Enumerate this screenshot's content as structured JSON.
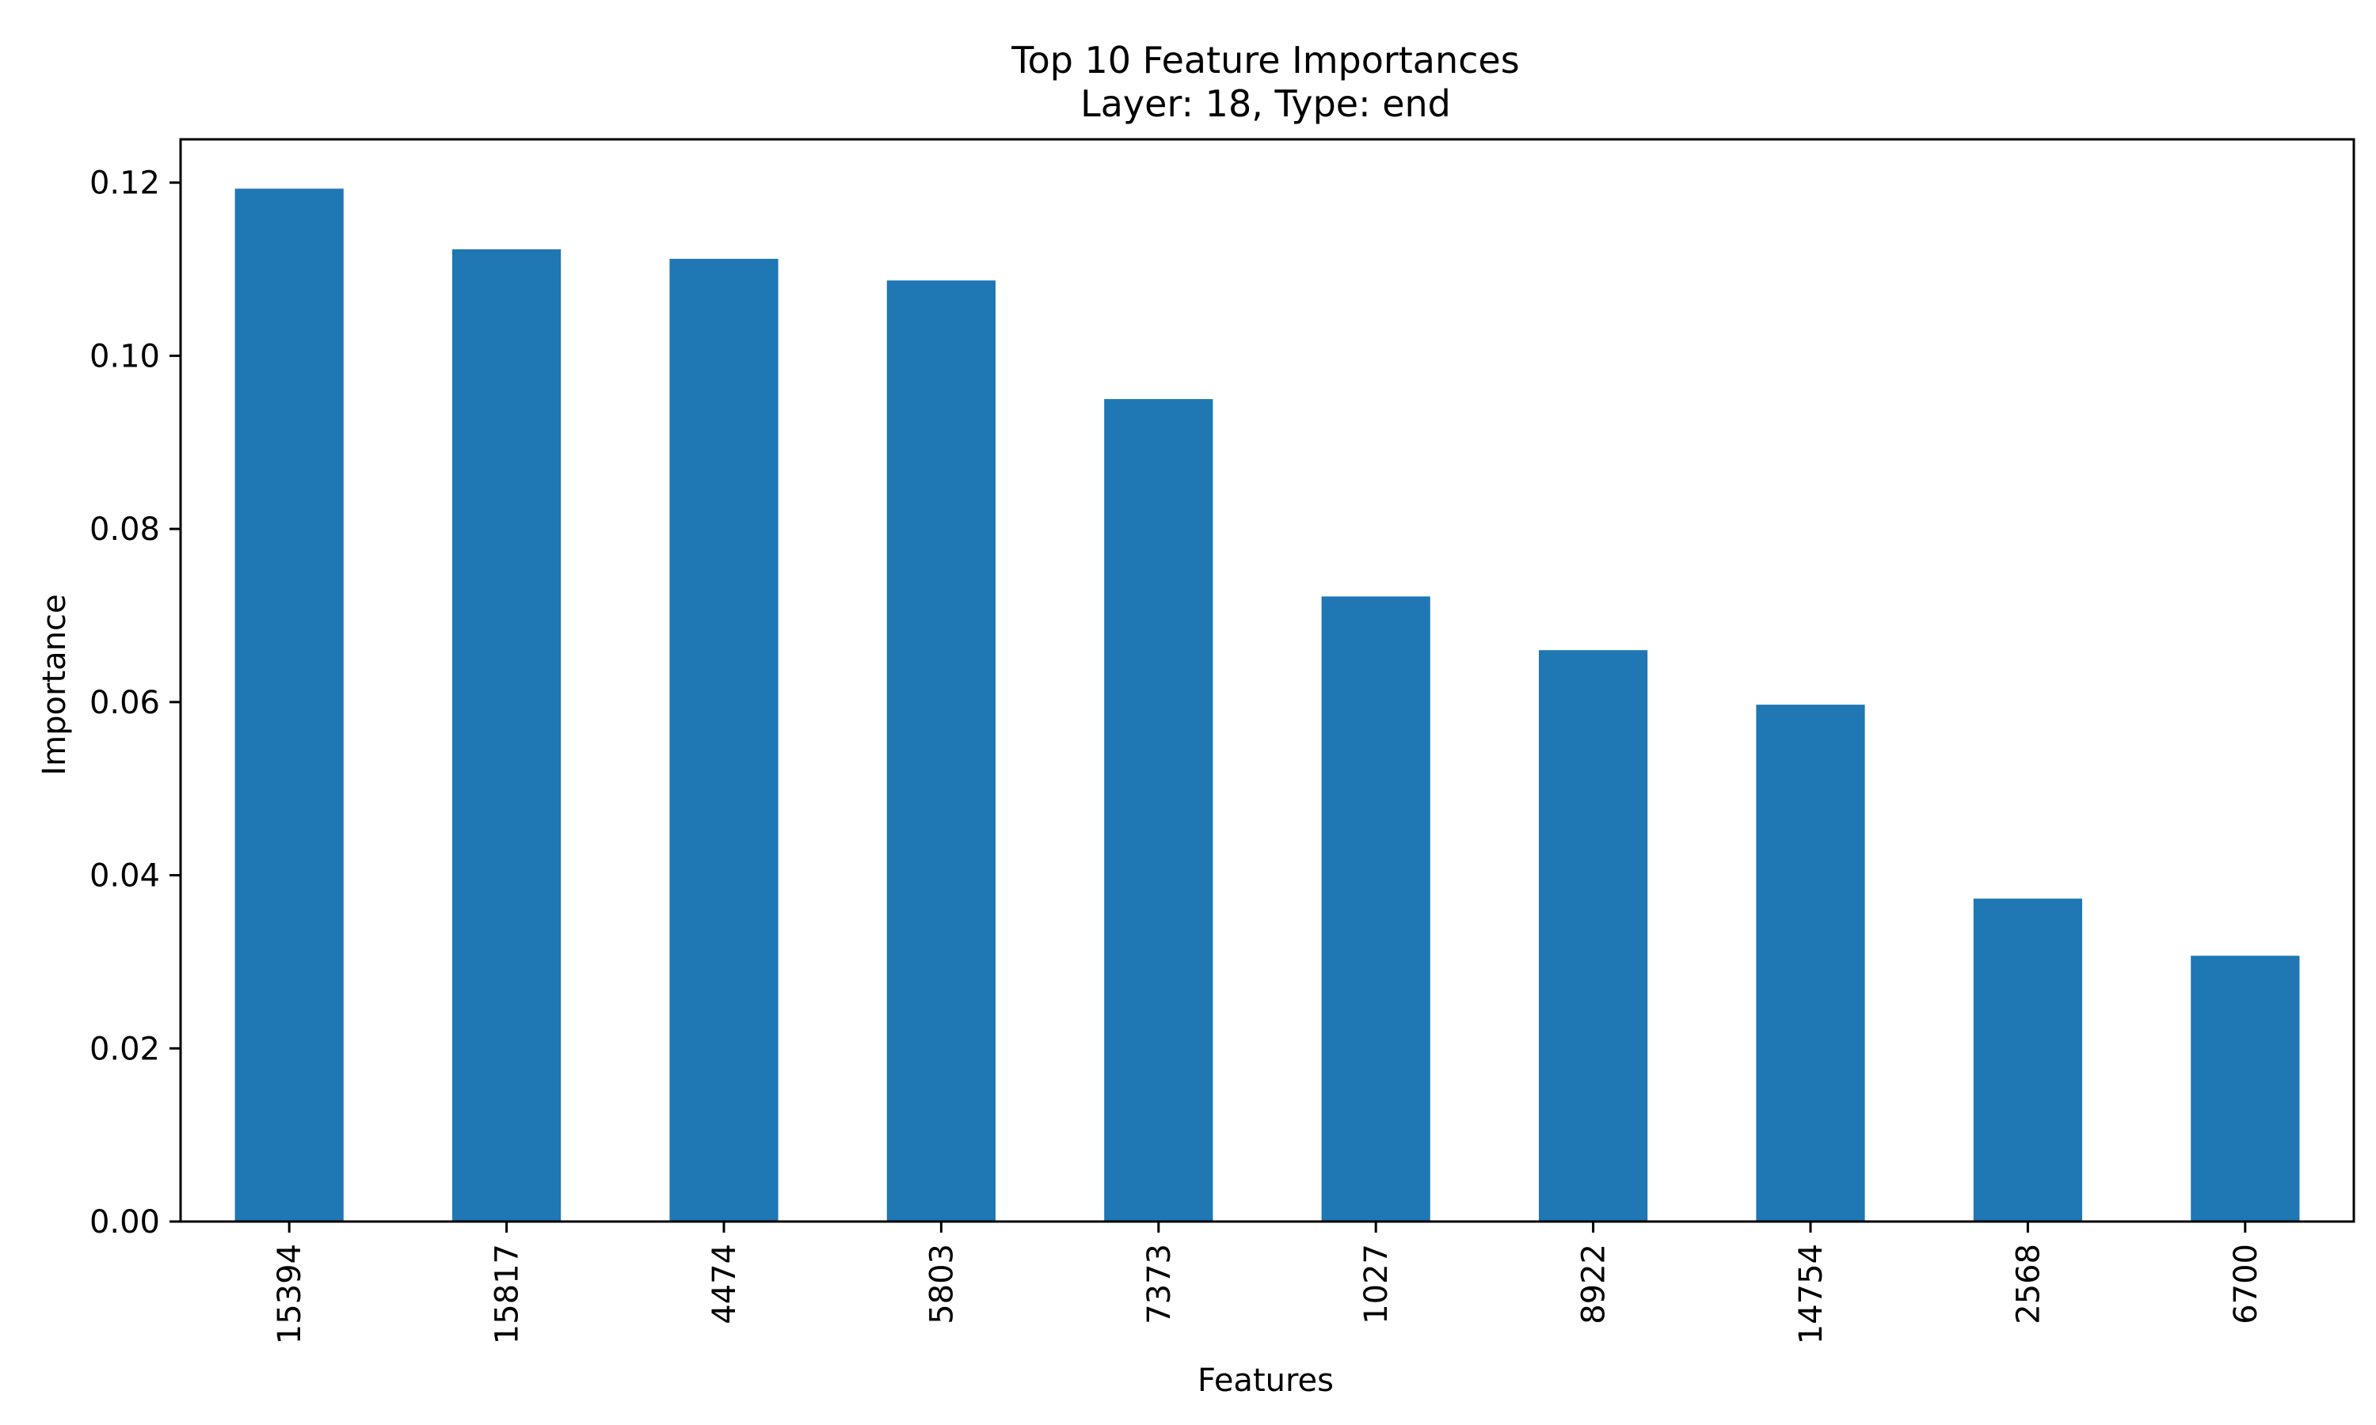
{
  "chart_data": {
    "type": "bar",
    "title": "Top 10 Feature Importances",
    "subtitle": "Layer: 18, Type: end",
    "xlabel": "Features",
    "ylabel": "Importance",
    "categories": [
      "15394",
      "15817",
      "4474",
      "5803",
      "7373",
      "1027",
      "8922",
      "14754",
      "2568",
      "6700"
    ],
    "values": [
      0.1193,
      0.1123,
      0.1112,
      0.1087,
      0.095,
      0.0722,
      0.066,
      0.0597,
      0.0373,
      0.0307
    ],
    "ylim": [
      0,
      0.125
    ],
    "yticks": [
      "0.00",
      "0.02",
      "0.04",
      "0.06",
      "0.08",
      "0.10",
      "0.12"
    ],
    "ytick_values": [
      0,
      0.02,
      0.04,
      0.06,
      0.08,
      0.1,
      0.12
    ],
    "grid": false,
    "bar_color": "#1f77b4"
  }
}
